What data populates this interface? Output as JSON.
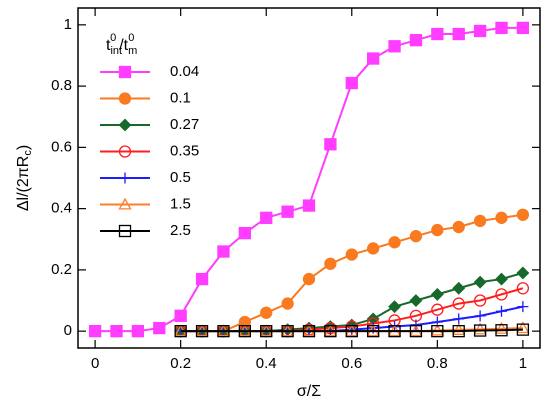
{
  "chart_data": {
    "type": "line",
    "x_label": [
      "σ/Σ"
    ],
    "y_label": [
      "Δl/(2πR",
      "c",
      ")"
    ],
    "legend_title": [
      "t",
      "int",
      "0",
      "/t",
      "m",
      "0"
    ],
    "legend": "upper-left",
    "x": [
      0,
      0.05,
      0.1,
      0.15,
      0.2,
      0.25,
      0.3,
      0.35,
      0.4,
      0.45,
      0.5,
      0.55,
      0.6,
      0.65,
      0.7,
      0.75,
      0.8,
      0.85,
      0.9,
      0.95,
      1
    ],
    "xlim": [
      -0.04,
      1.04
    ],
    "xticks": [
      0,
      0.2,
      0.4,
      0.6,
      0.8,
      1
    ],
    "ylim": [
      -0.055,
      1.055
    ],
    "yticks": [
      0,
      0.2,
      0.4,
      0.6,
      0.8,
      1
    ],
    "series": [
      {
        "name": "0.04",
        "color": "#ff3cff",
        "marker": "square-filled",
        "values": [
          0,
          0,
          0,
          0.01,
          0.05,
          0.17,
          0.26,
          0.32,
          0.37,
          0.39,
          0.41,
          0.61,
          0.81,
          0.89,
          0.93,
          0.95,
          0.97,
          0.97,
          0.98,
          0.99,
          0.99
        ]
      },
      {
        "name": "0.1",
        "color": "#f97a1f",
        "marker": "circle-filled",
        "values": [
          null,
          null,
          null,
          null,
          0,
          0,
          0,
          0.03,
          0.06,
          0.09,
          0.17,
          0.22,
          0.25,
          0.27,
          0.29,
          0.31,
          0.33,
          0.34,
          0.36,
          0.37,
          0.38
        ]
      },
      {
        "name": "0.27",
        "color": "#17692b",
        "marker": "diamond-filled",
        "values": [
          null,
          null,
          null,
          null,
          0,
          0,
          0,
          0,
          0,
          0.005,
          0.01,
          0.015,
          0.02,
          0.04,
          0.08,
          0.1,
          0.12,
          0.14,
          0.16,
          0.17,
          0.19
        ]
      },
      {
        "name": "0.35",
        "color": "#ff1e1e",
        "marker": "circle-open",
        "values": [
          null,
          null,
          null,
          null,
          0,
          0,
          0,
          0,
          0,
          0,
          0.005,
          0.01,
          0.015,
          0.025,
          0.035,
          0.05,
          0.07,
          0.09,
          0.1,
          0.12,
          0.14
        ]
      },
      {
        "name": "0.5",
        "color": "#1c1cff",
        "marker": "plus",
        "values": [
          null,
          null,
          null,
          null,
          0,
          0,
          0,
          0,
          0,
          0,
          0,
          0,
          0.005,
          0.01,
          0.015,
          0.02,
          0.03,
          0.04,
          0.05,
          0.065,
          0.08
        ]
      },
      {
        "name": "1.5",
        "color": "#ff7e2a",
        "marker": "triangle-open",
        "values": [
          null,
          null,
          null,
          null,
          0,
          0,
          0,
          0,
          0,
          0,
          0,
          0,
          0,
          0,
          0,
          0,
          0.002,
          0.004,
          0.006,
          0.008,
          0.01
        ]
      },
      {
        "name": "2.5",
        "color": "#000000",
        "marker": "square-open",
        "values": [
          null,
          null,
          null,
          null,
          0,
          0,
          0,
          0,
          0,
          0,
          0,
          0,
          0,
          0,
          0,
          0,
          0,
          0,
          0.002,
          0.003,
          0.005
        ]
      }
    ]
  }
}
